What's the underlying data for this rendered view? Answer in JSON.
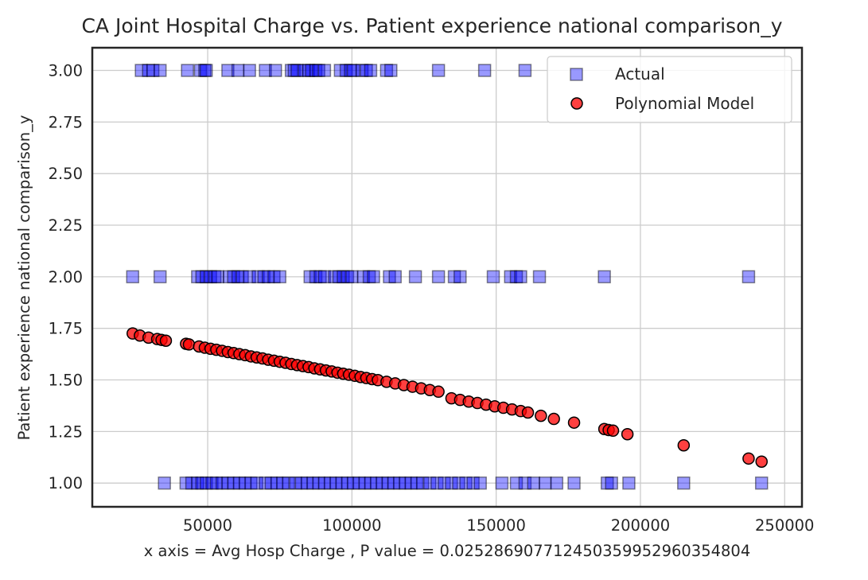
{
  "chart_data": {
    "type": "scatter",
    "title": "CA Joint Hospital Charge vs. Patient experience national comparison_y",
    "xlabel": "x axis = Avg Hosp Charge , P value = 0.025286907712450359952960354804",
    "ylabel": "Patient experience national comparison_y",
    "xlim": [
      10000,
      256000
    ],
    "ylim": [
      0.885,
      3.11
    ],
    "xticks": [
      50000,
      100000,
      150000,
      200000,
      250000
    ],
    "xtick_labels": [
      "50000",
      "100000",
      "150000",
      "200000",
      "250000"
    ],
    "yticks": [
      1.0,
      1.25,
      1.5,
      1.75,
      2.0,
      2.25,
      2.5,
      2.75,
      3.0
    ],
    "ytick_labels": [
      "1.00",
      "1.25",
      "1.50",
      "1.75",
      "2.00",
      "2.25",
      "2.50",
      "2.75",
      "3.00"
    ],
    "grid": true,
    "legend_position": "top-right",
    "series": [
      {
        "name": "Actual",
        "marker": "square",
        "color": "#0000ff",
        "x": [
          27000,
          29500,
          31000,
          33500,
          43000,
          47500,
          49000,
          49500,
          57000,
          60500,
          64500,
          70000,
          73500,
          79000,
          80000,
          81000,
          83500,
          85000,
          86000,
          87500,
          88500,
          90500,
          96000,
          98000,
          99500,
          100500,
          103500,
          105000,
          106500,
          112000,
          113500,
          130000,
          146000,
          160000,
          24000,
          33500,
          46500,
          48000,
          49500,
          51000,
          52500,
          53500,
          57500,
          59000,
          60500,
          62000,
          64500,
          67500,
          69500,
          71000,
          73000,
          75000,
          85500,
          87500,
          89000,
          90500,
          94000,
          95500,
          97000,
          98500,
          100000,
          104000,
          106000,
          107500,
          113000,
          115000,
          122000,
          130000,
          135500,
          137500,
          149000,
          155000,
          157000,
          158500,
          165000,
          187500,
          237500,
          35000,
          42500,
          44500,
          46500,
          48000,
          49500,
          51500,
          53000,
          55000,
          57000,
          59000,
          61000,
          63000,
          65000,
          67000,
          70000,
          72000,
          74000,
          76000,
          78000,
          80500,
          82500,
          84500,
          86500,
          88500,
          90500,
          92500,
          94500,
          96500,
          98500,
          100500,
          102500,
          104500,
          106500,
          108500,
          110500,
          112500,
          114500,
          116500,
          118500,
          120500,
          122500,
          124500,
          127000,
          129500,
          132000,
          134500,
          137000,
          139500,
          142000,
          144500,
          152000,
          157000,
          160000,
          163000,
          167000,
          171000,
          177000,
          188500,
          190000,
          196000,
          215000,
          242000
        ],
        "y": [
          3,
          3,
          3,
          3,
          3,
          3,
          3,
          3,
          3,
          3,
          3,
          3,
          3,
          3,
          3,
          3,
          3,
          3,
          3,
          3,
          3,
          3,
          3,
          3,
          3,
          3,
          3,
          3,
          3,
          3,
          3,
          3,
          3,
          3,
          2,
          2,
          2,
          2,
          2,
          2,
          2,
          2,
          2,
          2,
          2,
          2,
          2,
          2,
          2,
          2,
          2,
          2,
          2,
          2,
          2,
          2,
          2,
          2,
          2,
          2,
          2,
          2,
          2,
          2,
          2,
          2,
          2,
          2,
          2,
          2,
          2,
          2,
          2,
          2,
          2,
          2,
          2,
          1,
          1,
          1,
          1,
          1,
          1,
          1,
          1,
          1,
          1,
          1,
          1,
          1,
          1,
          1,
          1,
          1,
          1,
          1,
          1,
          1,
          1,
          1,
          1,
          1,
          1,
          1,
          1,
          1,
          1,
          1,
          1,
          1,
          1,
          1,
          1,
          1,
          1,
          1,
          1,
          1,
          1,
          1,
          1,
          1,
          1,
          1,
          1,
          1,
          1,
          1,
          1,
          1,
          1,
          1,
          1,
          1,
          1,
          1,
          1,
          1,
          1,
          1
        ]
      },
      {
        "name": "Polynomial Model",
        "marker": "circle",
        "color": "#ff0000",
        "x": [
          24000,
          26500,
          29500,
          32500,
          34000,
          35500,
          42500,
          43500,
          47000,
          49000,
          51000,
          53000,
          55000,
          57000,
          59000,
          61000,
          63000,
          65000,
          67000,
          69000,
          71000,
          73000,
          75000,
          77000,
          79000,
          81000,
          83000,
          85000,
          87000,
          89000,
          91000,
          93000,
          95000,
          97000,
          99000,
          101000,
          103000,
          105000,
          107000,
          109000,
          112000,
          115000,
          118000,
          121000,
          124000,
          127000,
          130000,
          134500,
          137500,
          140500,
          143500,
          146500,
          149500,
          152500,
          155500,
          158500,
          161000,
          165500,
          170000,
          177000,
          187500,
          189000,
          190500,
          195500,
          215000,
          237500,
          242000
        ],
        "y": [
          1.725,
          1.715,
          1.705,
          1.698,
          1.694,
          1.69,
          1.675,
          1.672,
          1.662,
          1.656,
          1.651,
          1.646,
          1.641,
          1.635,
          1.63,
          1.625,
          1.62,
          1.614,
          1.609,
          1.604,
          1.598,
          1.593,
          1.588,
          1.583,
          1.577,
          1.572,
          1.567,
          1.562,
          1.556,
          1.551,
          1.546,
          1.541,
          1.535,
          1.53,
          1.525,
          1.52,
          1.514,
          1.509,
          1.504,
          1.499,
          1.491,
          1.483,
          1.475,
          1.467,
          1.459,
          1.451,
          1.443,
          1.411,
          1.403,
          1.395,
          1.388,
          1.38,
          1.372,
          1.365,
          1.357,
          1.349,
          1.342,
          1.326,
          1.311,
          1.293,
          1.262,
          1.257,
          1.254,
          1.237,
          1.183,
          1.119,
          1.104
        ]
      }
    ]
  }
}
